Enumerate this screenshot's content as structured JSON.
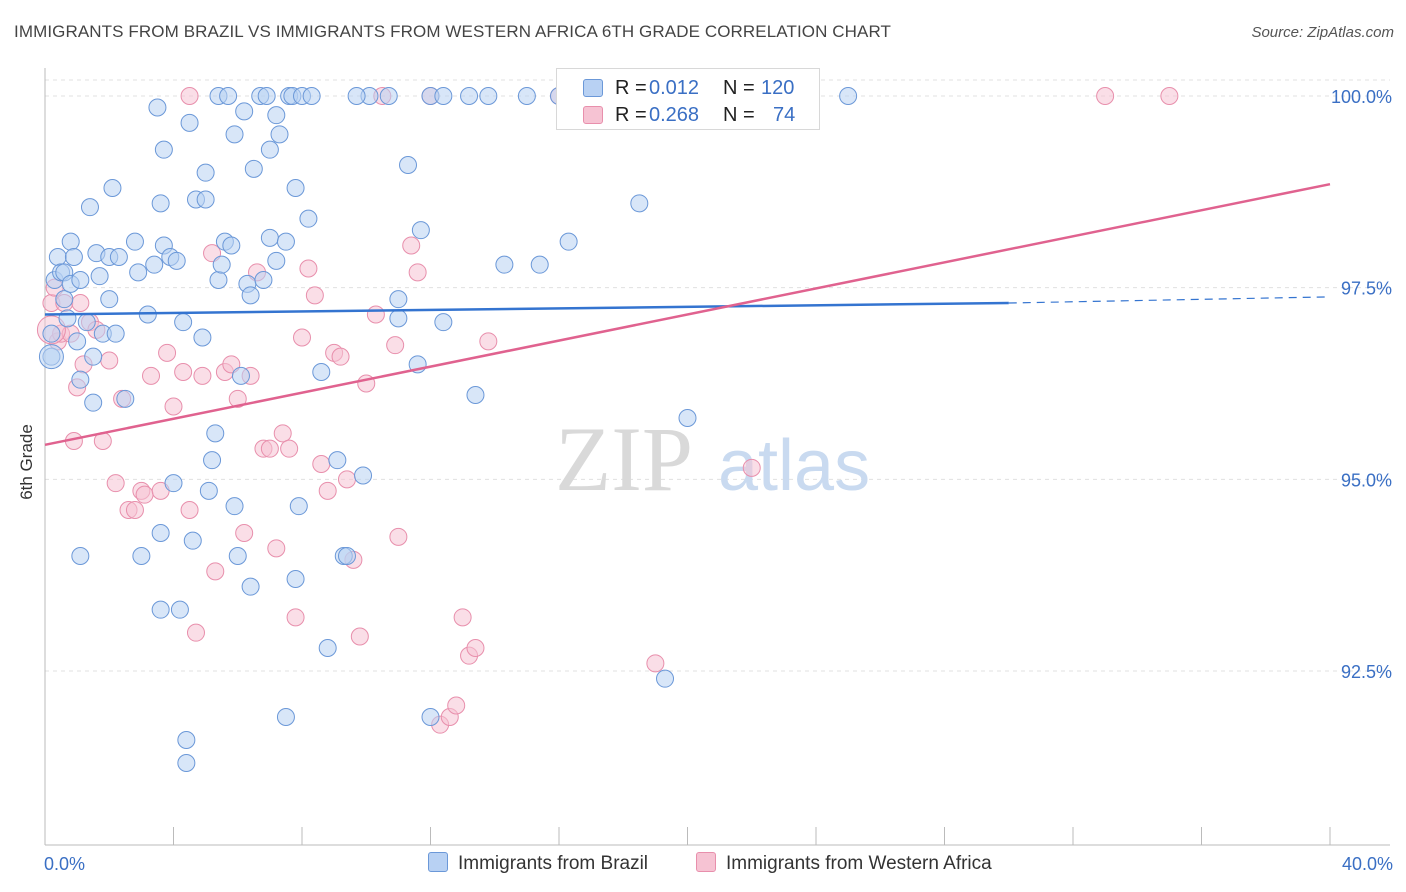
{
  "title": "IMMIGRANTS FROM BRAZIL VS IMMIGRANTS FROM WESTERN AFRICA 6TH GRADE CORRELATION CHART",
  "source": "Source: ZipAtlas.com",
  "watermark": {
    "zip": "ZIP",
    "atlas": "atlas"
  },
  "legend": {
    "rows": [
      {
        "r_label": "R =",
        "r_value": "0.012",
        "n_label": "N =",
        "n_value": "120"
      },
      {
        "r_label": "R =",
        "r_value": "0.268",
        "n_label": "N =",
        "n_value": "74"
      }
    ]
  },
  "colors": {
    "blue_fill": "#b8d1f3",
    "blue_stroke": "#6b98d8",
    "blue_line": "#3474d0",
    "pink_fill": "#f6c3d3",
    "pink_stroke": "#e88fac",
    "pink_line": "#e0628f",
    "grid": "#e0e0e0",
    "tick_label": "#3a6fc4"
  },
  "chart_data": {
    "type": "scatter",
    "title": "IMMIGRANTS FROM BRAZIL VS IMMIGRANTS FROM WESTERN AFRICA 6TH GRADE CORRELATION CHART",
    "xlabel": "",
    "ylabel": "6th Grade",
    "xlim": [
      0,
      40
    ],
    "ylim": [
      90.0,
      100.3
    ],
    "x_tick_labels": [
      "0.0%",
      "40.0%"
    ],
    "y_ticks": [
      92.5,
      95.0,
      97.5,
      100.0
    ],
    "y_tick_labels": [
      "92.5%",
      "95.0%",
      "97.5%",
      "100.0%"
    ],
    "grid": true,
    "legend_position": "top-center",
    "series": [
      {
        "name": "Immigrants from Brazil",
        "color": "#6b98d8",
        "trend": {
          "x": [
            0,
            30
          ],
          "y": [
            97.15,
            97.3
          ],
          "dashed_to": [
            40,
            97.38
          ]
        },
        "points": [
          [
            0.2,
            96.6
          ],
          [
            0.2,
            96.9
          ],
          [
            0.3,
            97.6
          ],
          [
            0.4,
            97.9
          ],
          [
            0.5,
            97.7
          ],
          [
            0.6,
            97.7
          ],
          [
            0.6,
            97.35
          ],
          [
            0.7,
            97.1
          ],
          [
            0.8,
            97.55
          ],
          [
            0.8,
            98.1
          ],
          [
            0.9,
            97.9
          ],
          [
            1.0,
            96.8
          ],
          [
            1.1,
            96.3
          ],
          [
            1.1,
            97.6
          ],
          [
            1.3,
            97.05
          ],
          [
            1.4,
            98.55
          ],
          [
            1.5,
            96.0
          ],
          [
            1.5,
            96.6
          ],
          [
            1.6,
            97.95
          ],
          [
            1.7,
            97.65
          ],
          [
            1.8,
            96.9
          ],
          [
            2.0,
            97.35
          ],
          [
            2.0,
            97.9
          ],
          [
            2.1,
            98.8
          ],
          [
            2.2,
            96.9
          ],
          [
            2.3,
            97.9
          ],
          [
            2.5,
            96.05
          ],
          [
            2.8,
            98.1
          ],
          [
            2.9,
            97.7
          ],
          [
            3.0,
            94.0
          ],
          [
            3.2,
            97.15
          ],
          [
            3.4,
            97.8
          ],
          [
            3.5,
            99.85
          ],
          [
            3.6,
            98.6
          ],
          [
            3.6,
            94.3
          ],
          [
            3.6,
            93.3
          ],
          [
            3.7,
            99.3
          ],
          [
            3.7,
            98.05
          ],
          [
            3.9,
            97.9
          ],
          [
            4.0,
            94.95
          ],
          [
            4.1,
            97.85
          ],
          [
            4.2,
            93.3
          ],
          [
            4.3,
            97.05
          ],
          [
            4.4,
            91.6
          ],
          [
            4.4,
            91.3
          ],
          [
            4.5,
            99.65
          ],
          [
            4.6,
            94.2
          ],
          [
            4.7,
            98.65
          ],
          [
            4.9,
            96.85
          ],
          [
            5.0,
            98.65
          ],
          [
            5.0,
            99.0
          ],
          [
            5.1,
            94.85
          ],
          [
            5.2,
            95.25
          ],
          [
            5.3,
            95.6
          ],
          [
            5.4,
            97.6
          ],
          [
            5.4,
            100.0
          ],
          [
            5.5,
            97.8
          ],
          [
            5.6,
            98.1
          ],
          [
            5.7,
            100.0
          ],
          [
            5.8,
            98.05
          ],
          [
            5.9,
            99.5
          ],
          [
            5.9,
            94.65
          ],
          [
            6.0,
            94.0
          ],
          [
            6.1,
            96.35
          ],
          [
            6.2,
            99.8
          ],
          [
            6.3,
            97.55
          ],
          [
            6.4,
            97.4
          ],
          [
            6.4,
            93.6
          ],
          [
            6.5,
            99.05
          ],
          [
            6.7,
            100.0
          ],
          [
            6.8,
            97.6
          ],
          [
            7.0,
            99.3
          ],
          [
            7.0,
            98.15
          ],
          [
            7.2,
            99.75
          ],
          [
            7.2,
            97.85
          ],
          [
            7.3,
            99.5
          ],
          [
            7.5,
            98.1
          ],
          [
            7.5,
            91.9
          ],
          [
            7.6,
            100.0
          ],
          [
            7.7,
            100.0
          ],
          [
            7.8,
            98.8
          ],
          [
            7.8,
            93.7
          ],
          [
            7.9,
            94.65
          ],
          [
            8.0,
            100.0
          ],
          [
            8.2,
            98.4
          ],
          [
            8.3,
            100.0
          ],
          [
            8.6,
            96.4
          ],
          [
            8.8,
            92.8
          ],
          [
            9.1,
            95.25
          ],
          [
            9.3,
            94.0
          ],
          [
            9.4,
            94.0
          ],
          [
            9.9,
            95.05
          ],
          [
            10.1,
            100.0
          ],
          [
            10.7,
            100.0
          ],
          [
            11.0,
            97.1
          ],
          [
            11.0,
            97.35
          ],
          [
            11.3,
            99.1
          ],
          [
            11.6,
            96.5
          ],
          [
            11.7,
            98.25
          ],
          [
            12.0,
            91.9
          ],
          [
            12.0,
            100.0
          ],
          [
            12.4,
            100.0
          ],
          [
            12.4,
            97.05
          ],
          [
            13.2,
            100.0
          ],
          [
            13.4,
            96.1
          ],
          [
            13.8,
            100.0
          ],
          [
            14.3,
            97.8
          ],
          [
            15.0,
            100.0
          ],
          [
            16.0,
            100.0
          ],
          [
            17.5,
            100.0
          ],
          [
            18.5,
            98.6
          ],
          [
            19.3,
            92.4
          ],
          [
            20.0,
            95.8
          ],
          [
            25.0,
            100.0
          ],
          [
            15.4,
            97.8
          ],
          [
            16.3,
            98.1
          ],
          [
            22.5,
            100.0
          ],
          [
            1.1,
            94.0
          ],
          [
            6.9,
            100.0
          ],
          [
            9.7,
            100.0
          ]
        ]
      },
      {
        "name": "Immigrants from Western Africa",
        "color": "#e88fac",
        "trend": {
          "x": [
            0,
            40
          ],
          "y": [
            95.45,
            98.85
          ]
        },
        "points": [
          [
            0.2,
            97.3
          ],
          [
            0.3,
            97.5
          ],
          [
            0.4,
            96.8
          ],
          [
            0.5,
            96.9
          ],
          [
            0.6,
            97.3
          ],
          [
            0.8,
            96.9
          ],
          [
            0.9,
            95.5
          ],
          [
            1.0,
            96.2
          ],
          [
            1.1,
            97.3
          ],
          [
            1.2,
            96.5
          ],
          [
            1.4,
            97.05
          ],
          [
            1.6,
            96.95
          ],
          [
            1.8,
            95.5
          ],
          [
            2.0,
            96.55
          ],
          [
            2.2,
            94.95
          ],
          [
            2.4,
            96.05
          ],
          [
            2.6,
            94.6
          ],
          [
            2.8,
            94.6
          ],
          [
            3.0,
            94.85
          ],
          [
            3.1,
            94.8
          ],
          [
            3.3,
            96.35
          ],
          [
            3.6,
            94.85
          ],
          [
            3.8,
            96.65
          ],
          [
            4.0,
            95.95
          ],
          [
            4.3,
            96.4
          ],
          [
            4.5,
            94.6
          ],
          [
            4.7,
            93.0
          ],
          [
            4.9,
            96.35
          ],
          [
            5.2,
            97.95
          ],
          [
            5.3,
            93.8
          ],
          [
            5.6,
            96.4
          ],
          [
            5.8,
            96.5
          ],
          [
            6.0,
            96.05
          ],
          [
            6.2,
            94.3
          ],
          [
            6.4,
            96.35
          ],
          [
            6.6,
            97.7
          ],
          [
            6.8,
            95.4
          ],
          [
            7.0,
            95.4
          ],
          [
            7.2,
            94.1
          ],
          [
            7.4,
            95.6
          ],
          [
            7.6,
            95.4
          ],
          [
            7.8,
            93.2
          ],
          [
            8.0,
            96.85
          ],
          [
            8.2,
            97.75
          ],
          [
            8.4,
            97.4
          ],
          [
            8.6,
            95.2
          ],
          [
            8.8,
            94.85
          ],
          [
            9.0,
            96.65
          ],
          [
            9.2,
            96.6
          ],
          [
            9.4,
            95.0
          ],
          [
            9.6,
            93.95
          ],
          [
            9.8,
            92.95
          ],
          [
            10.0,
            96.25
          ],
          [
            10.3,
            97.15
          ],
          [
            10.5,
            100.0
          ],
          [
            10.9,
            96.75
          ],
          [
            11.0,
            94.25
          ],
          [
            11.4,
            98.05
          ],
          [
            11.6,
            97.7
          ],
          [
            12.0,
            100.0
          ],
          [
            12.3,
            91.8
          ],
          [
            12.6,
            91.9
          ],
          [
            12.8,
            92.05
          ],
          [
            13.0,
            93.2
          ],
          [
            13.2,
            92.7
          ],
          [
            13.4,
            92.8
          ],
          [
            13.8,
            96.8
          ],
          [
            16.0,
            100.0
          ],
          [
            18.0,
            100.0
          ],
          [
            19.0,
            92.6
          ],
          [
            22.0,
            95.15
          ],
          [
            33.0,
            100.0
          ],
          [
            35.0,
            100.0
          ],
          [
            4.5,
            100.0
          ]
        ]
      }
    ]
  },
  "bottom_legend": [
    {
      "label": "Immigrants from Brazil"
    },
    {
      "label": "Immigrants from Western Africa"
    }
  ]
}
